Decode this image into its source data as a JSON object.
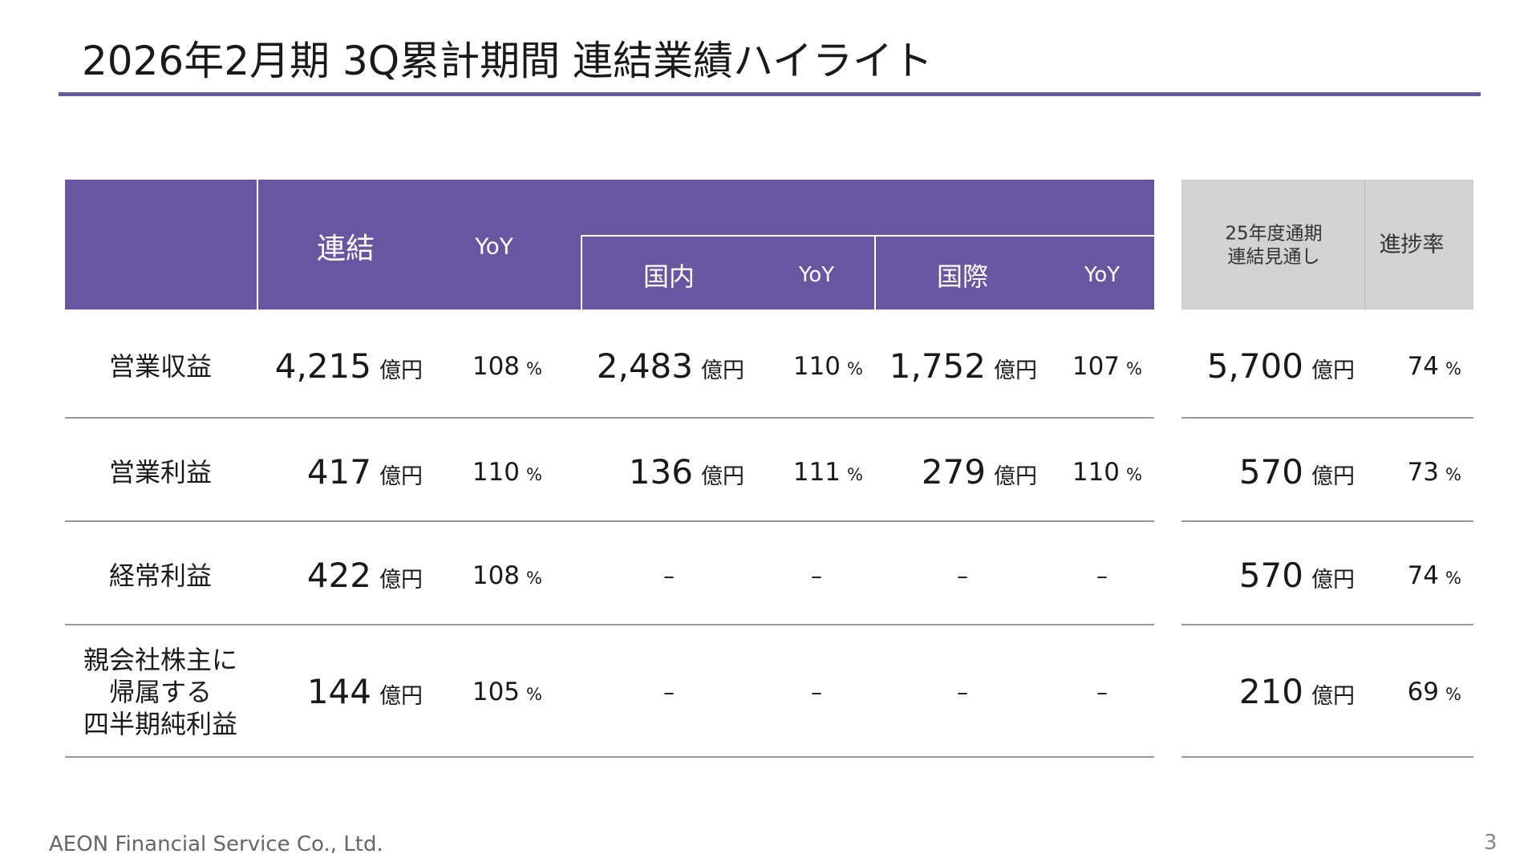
{
  "title": "2026年2月期 3Q累計期間 連結業績ハイライト",
  "header": {
    "consolidated": "連結",
    "yoy": [
      "YoY",
      "YoY",
      "YoY"
    ],
    "domestic": "国内",
    "international": "国際",
    "forecast": [
      "25年度通期",
      "連結見通し"
    ],
    "progress": "進捗率"
  },
  "table": {
    "rows": [
      {
        "label": [
          "営業収益"
        ],
        "cells": [
          {
            "value": "4,215",
            "unit": "億円"
          },
          {
            "value": "108",
            "unit": "%"
          },
          {
            "value": "2,483",
            "unit": "億円"
          },
          {
            "value": "110",
            "unit": "%"
          },
          {
            "value": "1,752",
            "unit": "億円"
          },
          {
            "value": "107",
            "unit": "%"
          },
          {
            "value": "5,700",
            "unit": "億円"
          },
          {
            "value": "74",
            "unit": "%"
          }
        ]
      },
      {
        "label": [
          "営業利益"
        ],
        "cells": [
          {
            "value": "417",
            "unit": "億円"
          },
          {
            "value": "110",
            "unit": "%"
          },
          {
            "value": "136",
            "unit": "億円"
          },
          {
            "value": "111",
            "unit": "%"
          },
          {
            "value": "279",
            "unit": "億円"
          },
          {
            "value": "110",
            "unit": "%"
          },
          {
            "value": "570",
            "unit": "億円"
          },
          {
            "value": "73",
            "unit": "%"
          }
        ]
      },
      {
        "label": [
          "経常利益"
        ],
        "cells": [
          {
            "value": "422",
            "unit": "億円"
          },
          {
            "value": "108",
            "unit": "%"
          },
          {
            "text": "–"
          },
          {
            "text": "–"
          },
          {
            "text": "–"
          },
          {
            "text": "–"
          },
          {
            "value": "570",
            "unit": "億円"
          },
          {
            "value": "74",
            "unit": "%"
          }
        ]
      },
      {
        "label": [
          "親会社株主に",
          "帰属する",
          "四半期純利益"
        ],
        "cells": [
          {
            "value": "144",
            "unit": "億円"
          },
          {
            "value": "105",
            "unit": "%"
          },
          {
            "text": "–"
          },
          {
            "text": "–"
          },
          {
            "text": "–"
          },
          {
            "text": "–"
          },
          {
            "value": "210",
            "unit": "億円"
          },
          {
            "value": "69",
            "unit": "%"
          }
        ]
      }
    ]
  },
  "footer": {
    "company": "AEON Financial Service Co., Ltd.",
    "page": "3"
  }
}
